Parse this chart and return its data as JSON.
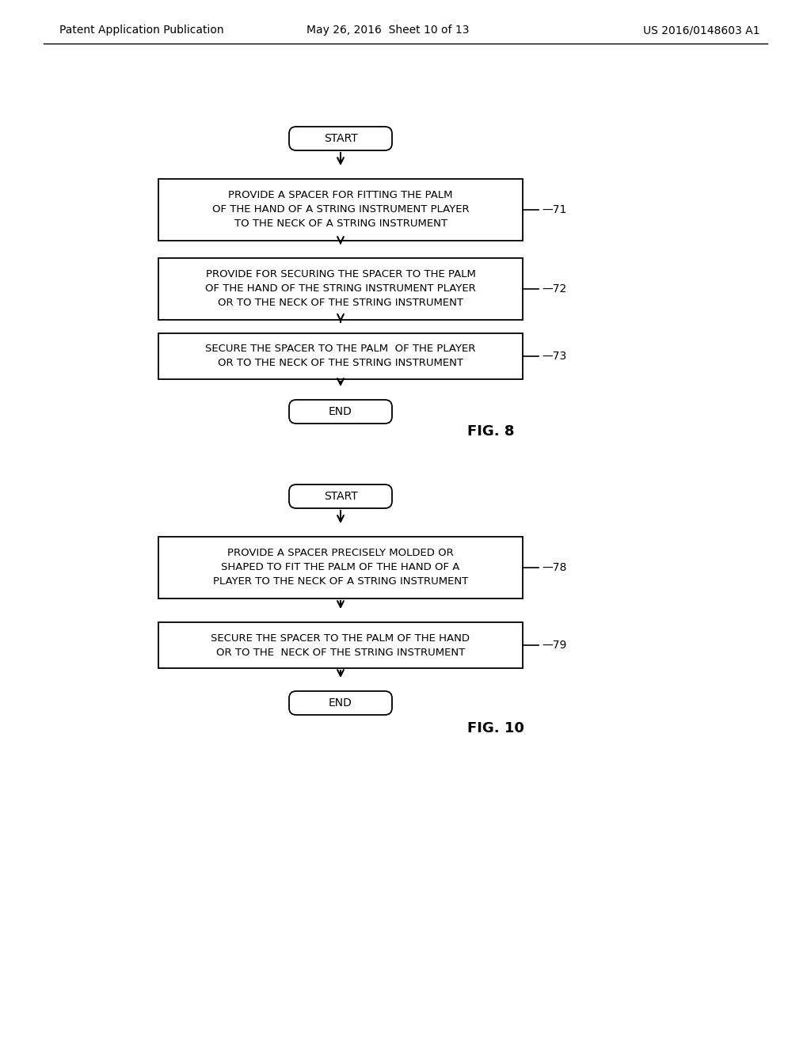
{
  "bg_color": "#ffffff",
  "header_left": "Patent Application Publication",
  "header_mid": "May 26, 2016  Sheet 10 of 13",
  "header_right": "US 2016/0148603 A1",
  "fig8": {
    "label": "FIG. 8",
    "start_text": "START",
    "end_text": "END",
    "boxes": [
      {
        "lines": [
          "PROVIDE A SPACER FOR FITTING THE PALM",
          "OF THE HAND OF A STRING INSTRUMENT PLAYER",
          "TO THE NECK OF A STRING INSTRUMENT"
        ],
        "label": "71"
      },
      {
        "lines": [
          "PROVIDE FOR SECURING THE SPACER TO THE PALM",
          "OF THE HAND OF THE STRING INSTRUMENT PLAYER",
          "OR TO THE NECK OF THE STRING INSTRUMENT"
        ],
        "label": "72"
      },
      {
        "lines": [
          "SECURE THE SPACER TO THE PALM  OF THE PLAYER",
          "OR TO THE NECK OF THE STRING INSTRUMENT"
        ],
        "label": "73"
      }
    ]
  },
  "fig10": {
    "label": "FIG. 10",
    "start_text": "START",
    "end_text": "END",
    "boxes": [
      {
        "lines": [
          "PROVIDE A SPACER PRECISELY MOLDED OR",
          "SHAPED TO FIT THE PALM OF THE HAND OF A",
          "PLAYER TO THE NECK OF A STRING INSTRUMENT"
        ],
        "label": "78"
      },
      {
        "lines": [
          "SECURE THE SPACER TO THE PALM OF THE HAND",
          "OR TO THE  NECK OF THE STRING INSTRUMENT"
        ],
        "label": "79"
      }
    ]
  },
  "text_color": "#000000",
  "box_edge_color": "#000000",
  "arrow_color": "#000000",
  "font_size_header": 10,
  "font_size_box": 9.5,
  "font_size_terminal": 10,
  "font_size_label": 10,
  "font_size_fig": 13
}
